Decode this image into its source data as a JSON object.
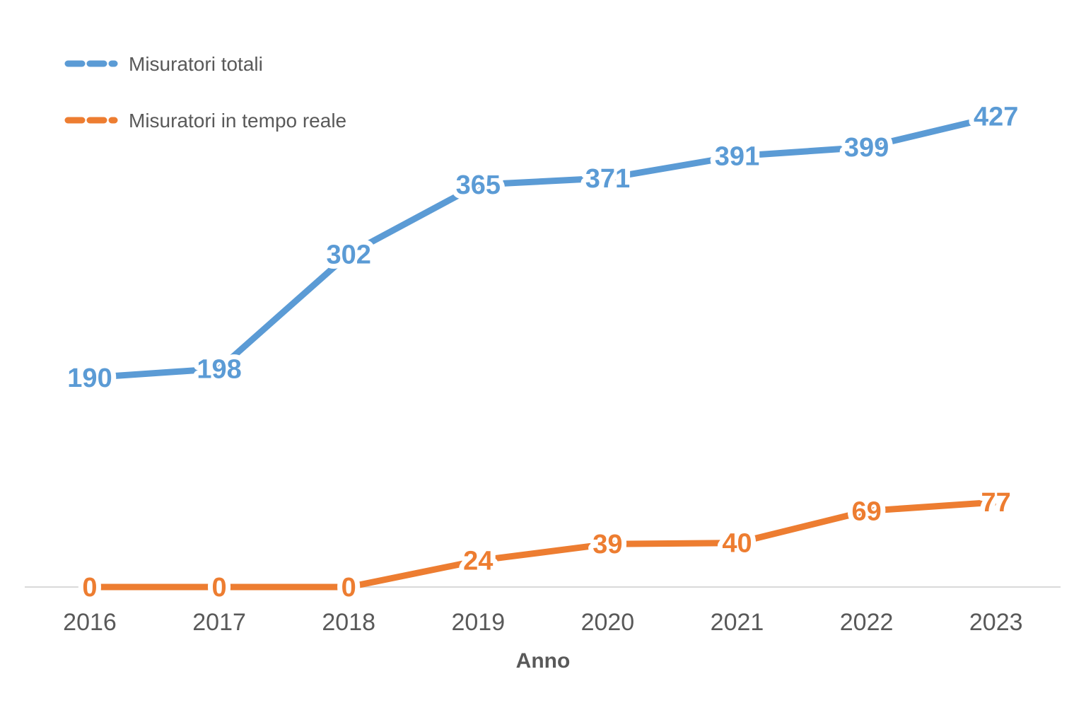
{
  "chart_data": {
    "type": "line",
    "title": "",
    "xlabel": "Anno",
    "ylabel": "",
    "categories": [
      "2016",
      "2017",
      "2018",
      "2019",
      "2020",
      "2021",
      "2022",
      "2023"
    ],
    "ylim": [
      0,
      450
    ],
    "grid": false,
    "legend": "top-left",
    "series": [
      {
        "name": "Misuratori totali",
        "color": "#5B9BD5",
        "values": [
          190,
          198,
          302,
          365,
          371,
          391,
          399,
          427
        ]
      },
      {
        "name": "Misuratori in tempo reale",
        "color": "#ED7D31",
        "values": [
          0,
          0,
          0,
          24,
          39,
          40,
          69,
          77
        ]
      }
    ]
  }
}
